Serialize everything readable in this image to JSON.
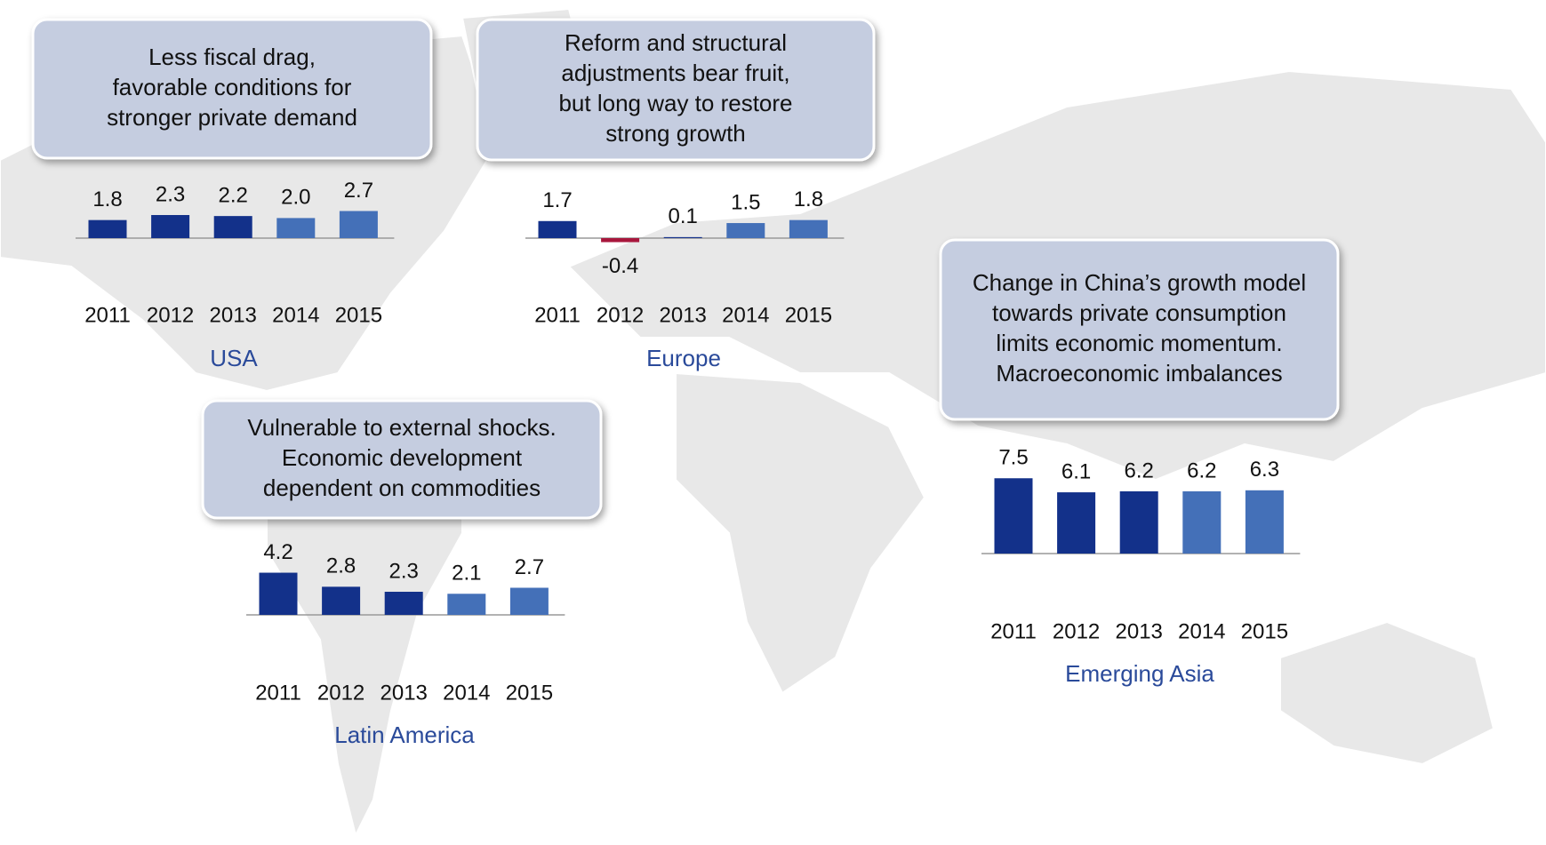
{
  "chart_data": [
    {
      "type": "bar",
      "title": "USA",
      "annotation": [
        "Less fiscal drag,",
        "favorable conditions for",
        "stronger private demand"
      ],
      "categories": [
        "2011",
        "2012",
        "2013",
        "2014",
        "2015"
      ],
      "values": [
        1.8,
        2.3,
        2.2,
        2.0,
        2.7
      ],
      "value_labels": [
        "1.8",
        "2.3",
        "2.2",
        "2.0",
        "2.7"
      ],
      "colors": [
        "#13318a",
        "#13318a",
        "#13318a",
        "#4470b8",
        "#4470b8"
      ]
    },
    {
      "type": "bar",
      "title": "Europe",
      "annotation": [
        "Reform and structural",
        "adjustments bear fruit,",
        "but long way to restore",
        "strong growth"
      ],
      "categories": [
        "2011",
        "2012",
        "2013",
        "2014",
        "2015"
      ],
      "values": [
        1.7,
        -0.4,
        0.1,
        1.5,
        1.8
      ],
      "value_labels": [
        "1.7",
        "-0.4",
        "0.1",
        "1.5",
        "1.8"
      ],
      "colors": [
        "#13318a",
        "#a8163c",
        "#13318a",
        "#4470b8",
        "#4470b8"
      ]
    },
    {
      "type": "bar",
      "title": "Latin America",
      "annotation": [
        "Vulnerable to external shocks.",
        "Economic development",
        "dependent on commodities"
      ],
      "categories": [
        "2011",
        "2012",
        "2013",
        "2014",
        "2015"
      ],
      "values": [
        4.2,
        2.8,
        2.3,
        2.1,
        2.7
      ],
      "value_labels": [
        "4.2",
        "2.8",
        "2.3",
        "2.1",
        "2.7"
      ],
      "colors": [
        "#13318a",
        "#13318a",
        "#13318a",
        "#4470b8",
        "#4470b8"
      ]
    },
    {
      "type": "bar",
      "title": "Emerging Asia",
      "annotation": [
        "Change in China’s growth model",
        "towards private consumption",
        "limits economic momentum.",
        "Macroeconomic imbalances"
      ],
      "categories": [
        "2011",
        "2012",
        "2013",
        "2014",
        "2015"
      ],
      "values": [
        7.5,
        6.1,
        6.2,
        6.2,
        6.3
      ],
      "value_labels": [
        "7.5",
        "6.1",
        "6.2",
        "6.2",
        "6.3"
      ],
      "colors": [
        "#13318a",
        "#13318a",
        "#13318a",
        "#4470b8",
        "#4470b8"
      ]
    }
  ]
}
